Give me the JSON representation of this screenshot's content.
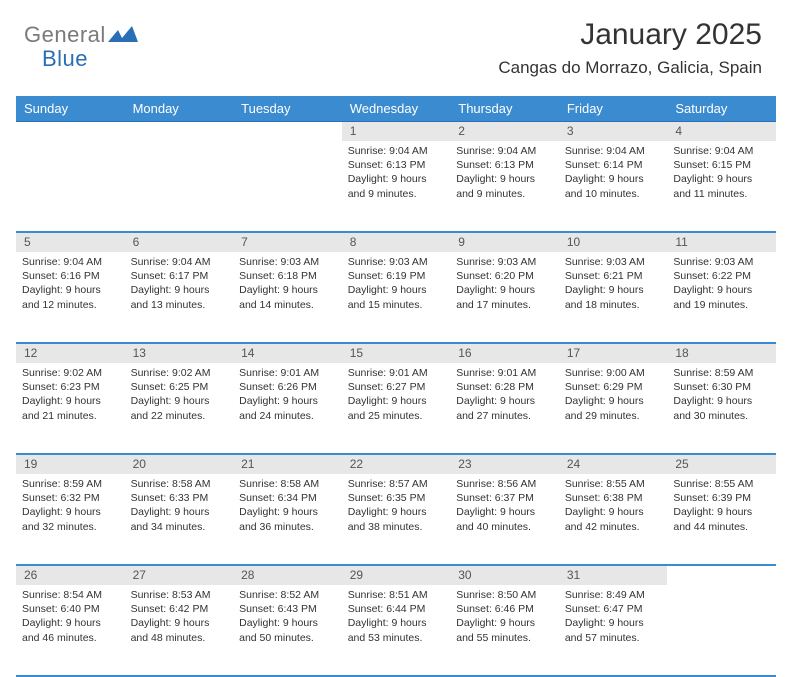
{
  "brand": {
    "part1": "General",
    "part2": "Blue"
  },
  "title": "January 2025",
  "location": "Cangas do Morrazo, Galicia, Spain",
  "colors": {
    "header_bg": "#3b8bd0",
    "border": "#3b8bd0",
    "num_bg": "#e7e7e7",
    "text": "#333333"
  },
  "dow": [
    "Sunday",
    "Monday",
    "Tuesday",
    "Wednesday",
    "Thursday",
    "Friday",
    "Saturday"
  ],
  "weeks": [
    [
      null,
      null,
      null,
      {
        "n": "1",
        "sr": "9:04 AM",
        "ss": "6:13 PM",
        "d1": "9 hours",
        "d2": "9 minutes"
      },
      {
        "n": "2",
        "sr": "9:04 AM",
        "ss": "6:13 PM",
        "d1": "9 hours",
        "d2": "9 minutes"
      },
      {
        "n": "3",
        "sr": "9:04 AM",
        "ss": "6:14 PM",
        "d1": "9 hours",
        "d2": "10 minutes"
      },
      {
        "n": "4",
        "sr": "9:04 AM",
        "ss": "6:15 PM",
        "d1": "9 hours",
        "d2": "11 minutes"
      }
    ],
    [
      {
        "n": "5",
        "sr": "9:04 AM",
        "ss": "6:16 PM",
        "d1": "9 hours",
        "d2": "12 minutes"
      },
      {
        "n": "6",
        "sr": "9:04 AM",
        "ss": "6:17 PM",
        "d1": "9 hours",
        "d2": "13 minutes"
      },
      {
        "n": "7",
        "sr": "9:03 AM",
        "ss": "6:18 PM",
        "d1": "9 hours",
        "d2": "14 minutes"
      },
      {
        "n": "8",
        "sr": "9:03 AM",
        "ss": "6:19 PM",
        "d1": "9 hours",
        "d2": "15 minutes"
      },
      {
        "n": "9",
        "sr": "9:03 AM",
        "ss": "6:20 PM",
        "d1": "9 hours",
        "d2": "17 minutes"
      },
      {
        "n": "10",
        "sr": "9:03 AM",
        "ss": "6:21 PM",
        "d1": "9 hours",
        "d2": "18 minutes"
      },
      {
        "n": "11",
        "sr": "9:03 AM",
        "ss": "6:22 PM",
        "d1": "9 hours",
        "d2": "19 minutes"
      }
    ],
    [
      {
        "n": "12",
        "sr": "9:02 AM",
        "ss": "6:23 PM",
        "d1": "9 hours",
        "d2": "21 minutes"
      },
      {
        "n": "13",
        "sr": "9:02 AM",
        "ss": "6:25 PM",
        "d1": "9 hours",
        "d2": "22 minutes"
      },
      {
        "n": "14",
        "sr": "9:01 AM",
        "ss": "6:26 PM",
        "d1": "9 hours",
        "d2": "24 minutes"
      },
      {
        "n": "15",
        "sr": "9:01 AM",
        "ss": "6:27 PM",
        "d1": "9 hours",
        "d2": "25 minutes"
      },
      {
        "n": "16",
        "sr": "9:01 AM",
        "ss": "6:28 PM",
        "d1": "9 hours",
        "d2": "27 minutes"
      },
      {
        "n": "17",
        "sr": "9:00 AM",
        "ss": "6:29 PM",
        "d1": "9 hours",
        "d2": "29 minutes"
      },
      {
        "n": "18",
        "sr": "8:59 AM",
        "ss": "6:30 PM",
        "d1": "9 hours",
        "d2": "30 minutes"
      }
    ],
    [
      {
        "n": "19",
        "sr": "8:59 AM",
        "ss": "6:32 PM",
        "d1": "9 hours",
        "d2": "32 minutes"
      },
      {
        "n": "20",
        "sr": "8:58 AM",
        "ss": "6:33 PM",
        "d1": "9 hours",
        "d2": "34 minutes"
      },
      {
        "n": "21",
        "sr": "8:58 AM",
        "ss": "6:34 PM",
        "d1": "9 hours",
        "d2": "36 minutes"
      },
      {
        "n": "22",
        "sr": "8:57 AM",
        "ss": "6:35 PM",
        "d1": "9 hours",
        "d2": "38 minutes"
      },
      {
        "n": "23",
        "sr": "8:56 AM",
        "ss": "6:37 PM",
        "d1": "9 hours",
        "d2": "40 minutes"
      },
      {
        "n": "24",
        "sr": "8:55 AM",
        "ss": "6:38 PM",
        "d1": "9 hours",
        "d2": "42 minutes"
      },
      {
        "n": "25",
        "sr": "8:55 AM",
        "ss": "6:39 PM",
        "d1": "9 hours",
        "d2": "44 minutes"
      }
    ],
    [
      {
        "n": "26",
        "sr": "8:54 AM",
        "ss": "6:40 PM",
        "d1": "9 hours",
        "d2": "46 minutes"
      },
      {
        "n": "27",
        "sr": "8:53 AM",
        "ss": "6:42 PM",
        "d1": "9 hours",
        "d2": "48 minutes"
      },
      {
        "n": "28",
        "sr": "8:52 AM",
        "ss": "6:43 PM",
        "d1": "9 hours",
        "d2": "50 minutes"
      },
      {
        "n": "29",
        "sr": "8:51 AM",
        "ss": "6:44 PM",
        "d1": "9 hours",
        "d2": "53 minutes"
      },
      {
        "n": "30",
        "sr": "8:50 AM",
        "ss": "6:46 PM",
        "d1": "9 hours",
        "d2": "55 minutes"
      },
      {
        "n": "31",
        "sr": "8:49 AM",
        "ss": "6:47 PM",
        "d1": "9 hours",
        "d2": "57 minutes"
      },
      null
    ]
  ],
  "labels": {
    "sunrise": "Sunrise:",
    "sunset": "Sunset:",
    "daylight": "Daylight:",
    "and": "and"
  }
}
